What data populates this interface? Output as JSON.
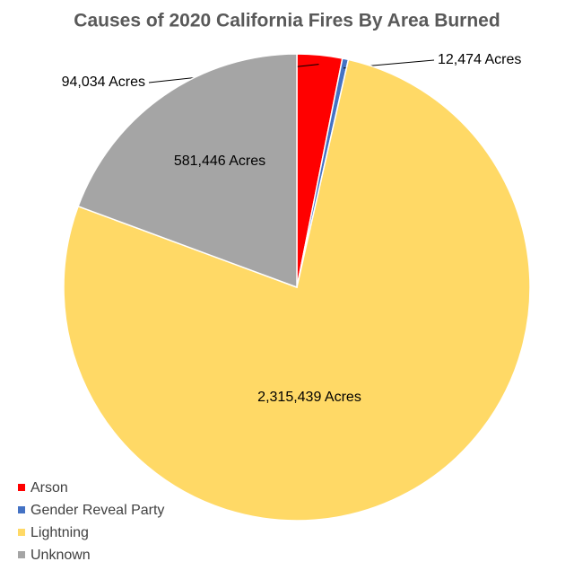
{
  "chart_data": {
    "type": "pie",
    "title": "Causes of 2020 California Fires By Area Burned",
    "categories": [
      "Arson",
      "Gender Reveal Party",
      "Lightning",
      "Unknown"
    ],
    "values": [
      94034,
      12474,
      2315439,
      581446
    ],
    "value_labels": [
      "94,034 Acres",
      "12,474 Acres",
      "2,315,439 Acres",
      "581,446 Acres"
    ],
    "colors": [
      "#ff0000",
      "#4472c4",
      "#ffd966",
      "#a5a5a5"
    ],
    "legend": "bottom-left"
  }
}
